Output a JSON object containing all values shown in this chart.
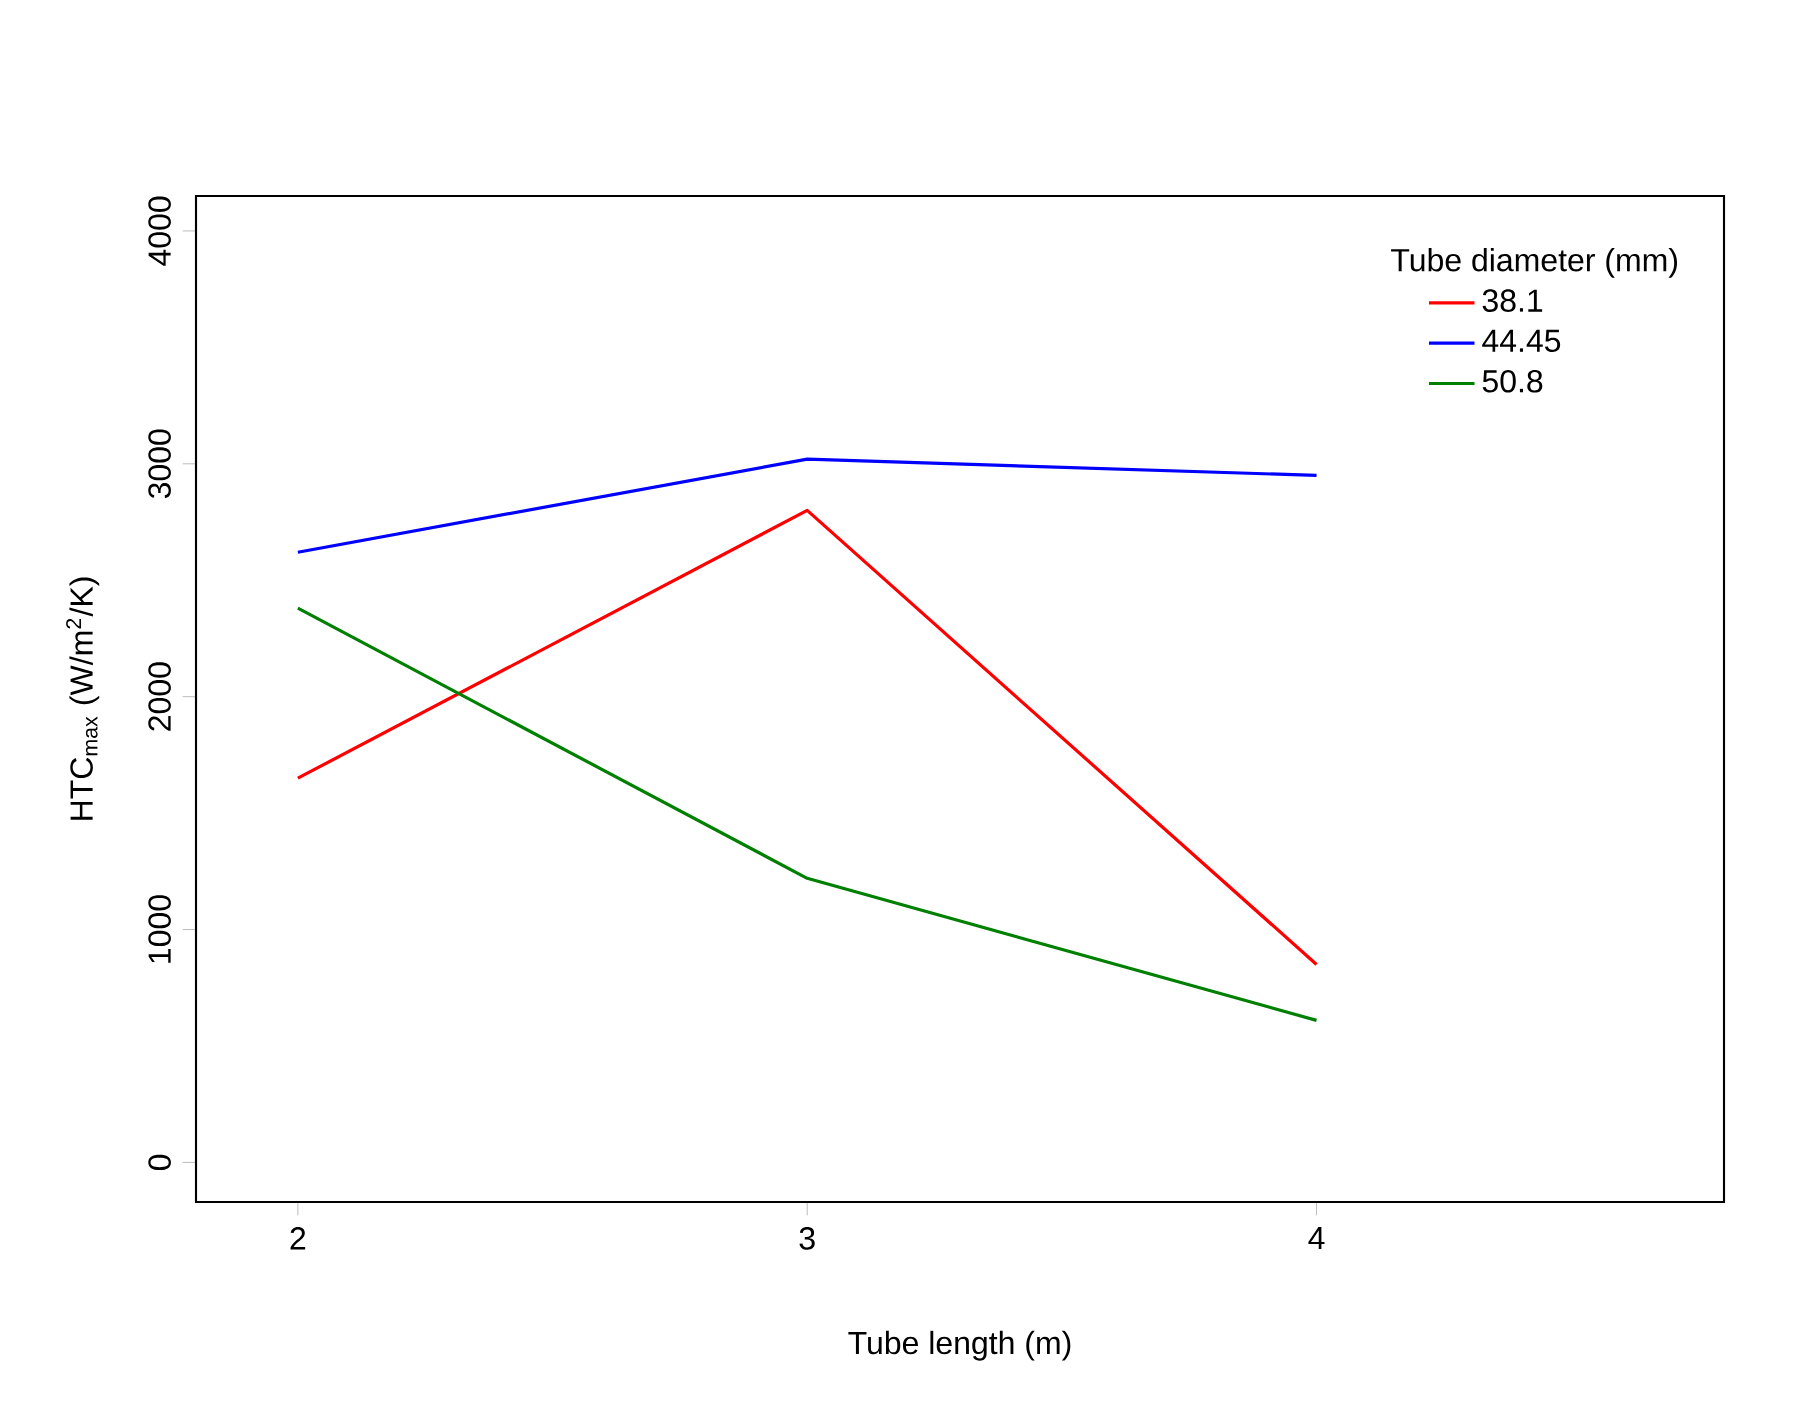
{
  "chart_data": {
    "type": "line",
    "xlabel": "Tube length (m)",
    "ylabel": "HTC$_{max}$ (W/m$^{2}$/K)",
    "legend_title": "Tube diameter (mm)",
    "legend": "top right",
    "grid": false,
    "line_style": "solid",
    "marker": "none",
    "x": [
      2,
      3,
      4
    ],
    "series": [
      {
        "name": "38.1",
        "color": "#ff0000",
        "values": [
          1650,
          2800,
          850
        ]
      },
      {
        "name": "44.45",
        "color": "#0000ff",
        "values": [
          2620,
          3020,
          2950
        ]
      },
      {
        "name": "50.8",
        "color": "#008000",
        "values": [
          2380,
          1220,
          610
        ]
      }
    ],
    "xlim": [
      1.8,
      4.8
    ],
    "ylim": [
      -170,
      4150
    ],
    "xticks": [
      2,
      3,
      4
    ],
    "yticks": [
      0,
      1000,
      2000,
      3000,
      4000
    ]
  }
}
